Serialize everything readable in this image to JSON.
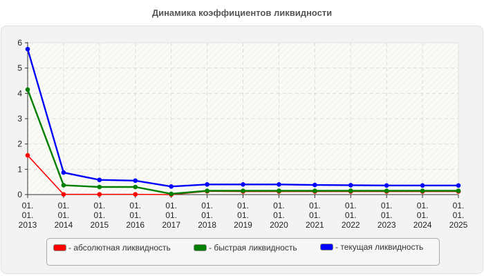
{
  "title": "Динамика коэффициентов ликвидности",
  "chart_data": {
    "type": "line",
    "title": "Динамика коэффициентов ликвидности",
    "xlabel": "",
    "ylabel": "",
    "ylim": [
      0,
      6
    ],
    "yticks": [
      "0",
      "1",
      "2",
      "3",
      "4",
      "5",
      "6"
    ],
    "grid": true,
    "legend_position": "bottom",
    "categories": [
      "01.01.2013",
      "01.01.2014",
      "01.01.2015",
      "01.01.2016",
      "01.01.2017",
      "01.01.2018",
      "01.01.2019",
      "01.01.2020",
      "01.01.2021",
      "01.01.2022",
      "01.01.2023",
      "01.01.2024",
      "01.01.2025"
    ],
    "tick_lines": [
      [
        "01.",
        "01.",
        "2013"
      ],
      [
        "01.",
        "01.",
        "2014"
      ],
      [
        "01.",
        "01.",
        "2015"
      ],
      [
        "01.",
        "01.",
        "2016"
      ],
      [
        "01.",
        "01.",
        "2017"
      ],
      [
        "01.",
        "01.",
        "2018"
      ],
      [
        "01.",
        "01.",
        "2019"
      ],
      [
        "01.",
        "01.",
        "2020"
      ],
      [
        "01.",
        "01.",
        "2021"
      ],
      [
        "01.",
        "01.",
        "2022"
      ],
      [
        "01.",
        "01.",
        "2023"
      ],
      [
        "01.",
        "01.",
        "2024"
      ],
      [
        "01.",
        "01.",
        "2025"
      ]
    ],
    "series": [
      {
        "name": "абсолютная ликвидность",
        "color": "#ff0000",
        "values": [
          1.55,
          0.01,
          0.01,
          0.01,
          0.0,
          0.13,
          0.12,
          0.12,
          0.12,
          0.12,
          0.12,
          0.12,
          0.12
        ]
      },
      {
        "name": "быстрая ликвидность",
        "color": "#008000",
        "values": [
          4.15,
          0.37,
          0.3,
          0.3,
          0.03,
          0.15,
          0.15,
          0.15,
          0.15,
          0.15,
          0.15,
          0.15,
          0.15
        ]
      },
      {
        "name": "текущая ликвидность",
        "color": "#0000ff",
        "values": [
          5.75,
          0.87,
          0.58,
          0.55,
          0.32,
          0.4,
          0.4,
          0.4,
          0.38,
          0.37,
          0.36,
          0.36,
          0.36
        ]
      }
    ]
  },
  "legend": {
    "items": [
      {
        "label": "- абсолютная ликвидность",
        "color": "#ff0000"
      },
      {
        "label": "- быстрая ликвидность",
        "color": "#008000"
      },
      {
        "label": "- текущая ликвидность",
        "color": "#0000ff"
      }
    ]
  }
}
